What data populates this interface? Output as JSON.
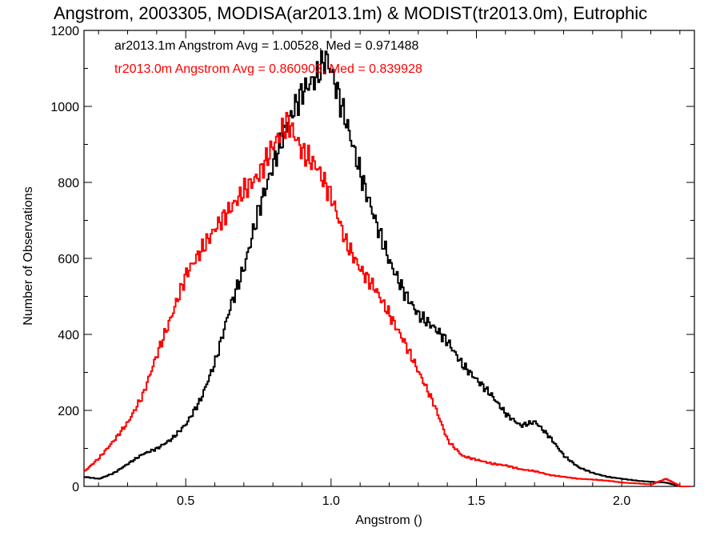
{
  "chart_data": {
    "type": "line",
    "title": "Angstrom, 2003305, MODISA(ar2013.1m) & MODIST(tr2013.0m), Eutrophic",
    "xlabel": "Angstrom ()",
    "ylabel": "Number of Observations",
    "xlim": [
      0.15,
      2.25
    ],
    "ylim": [
      0,
      1200
    ],
    "xticks": [
      0.5,
      1.0,
      1.5,
      2.0
    ],
    "xtick_labels": [
      "0.5",
      "1.0",
      "1.5",
      "2.0"
    ],
    "yticks": [
      0,
      200,
      400,
      600,
      800,
      1000,
      1200
    ],
    "ytick_labels": [
      "0",
      "200",
      "400",
      "600",
      "800",
      "1000",
      "1200"
    ],
    "grid": false,
    "legend_position": "top-left",
    "series": [
      {
        "name": "ar2013.1m Angstrom Avg = 1.00528, Med = 0.971488",
        "color": "#000000",
        "points": [
          [
            0.15,
            25
          ],
          [
            0.2,
            20
          ],
          [
            0.25,
            35
          ],
          [
            0.3,
            60
          ],
          [
            0.35,
            85
          ],
          [
            0.4,
            100
          ],
          [
            0.45,
            125
          ],
          [
            0.5,
            165
          ],
          [
            0.55,
            230
          ],
          [
            0.6,
            330
          ],
          [
            0.65,
            470
          ],
          [
            0.7,
            580
          ],
          [
            0.75,
            730
          ],
          [
            0.8,
            850
          ],
          [
            0.85,
            960
          ],
          [
            0.9,
            1040
          ],
          [
            0.95,
            1080
          ],
          [
            0.98,
            1130
          ],
          [
            1.0,
            1090
          ],
          [
            1.05,
            960
          ],
          [
            1.1,
            820
          ],
          [
            1.15,
            700
          ],
          [
            1.2,
            590
          ],
          [
            1.25,
            510
          ],
          [
            1.3,
            450
          ],
          [
            1.35,
            420
          ],
          [
            1.4,
            380
          ],
          [
            1.45,
            320
          ],
          [
            1.5,
            280
          ],
          [
            1.55,
            240
          ],
          [
            1.6,
            190
          ],
          [
            1.65,
            160
          ],
          [
            1.7,
            170
          ],
          [
            1.75,
            130
          ],
          [
            1.8,
            80
          ],
          [
            1.85,
            50
          ],
          [
            1.9,
            35
          ],
          [
            1.95,
            25
          ],
          [
            2.0,
            20
          ],
          [
            2.05,
            15
          ],
          [
            2.1,
            12
          ],
          [
            2.15,
            10
          ],
          [
            2.2,
            0
          ]
        ]
      },
      {
        "name": "tr2013.0m Angstrom Avg = 0.860903, Med = 0.839928",
        "color": "#ff0000",
        "points": [
          [
            0.15,
            40
          ],
          [
            0.2,
            75
          ],
          [
            0.25,
            120
          ],
          [
            0.3,
            170
          ],
          [
            0.35,
            240
          ],
          [
            0.4,
            350
          ],
          [
            0.45,
            450
          ],
          [
            0.5,
            560
          ],
          [
            0.55,
            620
          ],
          [
            0.6,
            680
          ],
          [
            0.65,
            730
          ],
          [
            0.7,
            780
          ],
          [
            0.75,
            820
          ],
          [
            0.8,
            900
          ],
          [
            0.85,
            960
          ],
          [
            0.9,
            880
          ],
          [
            0.95,
            840
          ],
          [
            1.0,
            760
          ],
          [
            1.05,
            640
          ],
          [
            1.1,
            570
          ],
          [
            1.15,
            520
          ],
          [
            1.2,
            450
          ],
          [
            1.25,
            380
          ],
          [
            1.3,
            300
          ],
          [
            1.35,
            220
          ],
          [
            1.4,
            120
          ],
          [
            1.45,
            80
          ],
          [
            1.5,
            70
          ],
          [
            1.55,
            60
          ],
          [
            1.6,
            55
          ],
          [
            1.65,
            45
          ],
          [
            1.7,
            40
          ],
          [
            1.75,
            30
          ],
          [
            1.8,
            25
          ],
          [
            1.85,
            20
          ],
          [
            1.9,
            18
          ],
          [
            1.95,
            15
          ],
          [
            2.0,
            10
          ],
          [
            2.05,
            8
          ],
          [
            2.1,
            5
          ],
          [
            2.15,
            20
          ],
          [
            2.2,
            0
          ]
        ]
      }
    ]
  }
}
